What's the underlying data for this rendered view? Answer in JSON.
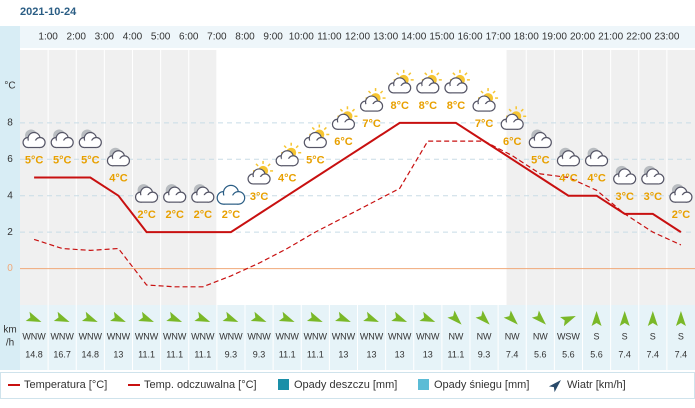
{
  "chart_data": {
    "type": "line",
    "title": "2021-10-24",
    "ylabel": "°C",
    "xlim": [
      0,
      24
    ],
    "xticks": [
      {
        "value": 1,
        "label": "1:00"
      },
      {
        "value": 2,
        "label": "2:00"
      },
      {
        "value": 3,
        "label": "3:00"
      },
      {
        "value": 4,
        "label": "4:00"
      },
      {
        "value": 5,
        "label": "5:00"
      },
      {
        "value": 6,
        "label": "6:00"
      },
      {
        "value": 7,
        "label": "7:00"
      },
      {
        "value": 8,
        "label": "8:00"
      },
      {
        "value": 9,
        "label": "9:00"
      },
      {
        "value": 10,
        "label": "10:00"
      },
      {
        "value": 11,
        "label": "11:00"
      },
      {
        "value": 12,
        "label": "12:00"
      },
      {
        "value": 13,
        "label": "13:00"
      },
      {
        "value": 14,
        "label": "14:00"
      },
      {
        "value": 15,
        "label": "15:00"
      },
      {
        "value": 16,
        "label": "16:00"
      },
      {
        "value": 17,
        "label": "17:00"
      },
      {
        "value": 18,
        "label": "18:00"
      },
      {
        "value": 19,
        "label": "19:00"
      },
      {
        "value": 20,
        "label": "20:00"
      },
      {
        "value": 21,
        "label": "21:00"
      },
      {
        "value": 22,
        "label": "22:00"
      },
      {
        "value": 23,
        "label": "23:00"
      }
    ],
    "x": [
      0.5,
      1.5,
      2.5,
      3.5,
      4.5,
      5.5,
      6.5,
      7.5,
      8.5,
      9.5,
      10.5,
      11.5,
      12.5,
      13.5,
      14.5,
      15.5,
      16.5,
      17.5,
      18.5,
      19.5,
      20.5,
      21.5,
      22.5,
      23.5
    ],
    "ylim": [
      -2,
      12
    ],
    "yticks": [
      0,
      2,
      4,
      6,
      8
    ],
    "grid": true,
    "zero_line_color": "#f0a878",
    "series": [
      {
        "name": "Temperatura [°C]",
        "color": "#c81010",
        "dash": false,
        "values": [
          5,
          5,
          5,
          4,
          2,
          2,
          2,
          2,
          3,
          4,
          5,
          6,
          7,
          8,
          8,
          8,
          7,
          6,
          5,
          4,
          4,
          3,
          3,
          2
        ],
        "value_labels": [
          "5°C",
          "5°C",
          "5°C",
          "4°C",
          "2°C",
          "2°C",
          "2°C",
          "2°C",
          "3°C",
          "4°C",
          "5°C",
          "6°C",
          "7°C",
          "8°C",
          "8°C",
          "8°C",
          "7°C",
          "6°C",
          "5°C",
          "4°C",
          "4°C",
          "3°C",
          "3°C",
          "2°C"
        ]
      },
      {
        "name": "Temp. odczuwalna [°C]",
        "color": "#c81010",
        "dash": true,
        "values": [
          1.6,
          1.1,
          1.0,
          1.1,
          -0.9,
          -1.0,
          -1.0,
          -0.4,
          0.3,
          1.1,
          2.0,
          2.8,
          3.6,
          4.4,
          7.0,
          7.0,
          7.0,
          6.2,
          5.2,
          5.0,
          4.3,
          3.0,
          2.0,
          1.3
        ]
      }
    ],
    "legend_items": [
      {
        "name": "Opady deszczu [mm]",
        "color": "#1a8fa8"
      },
      {
        "name": "Opady śniegu [mm]",
        "color": "#5bbcd6"
      },
      {
        "name": "Wiatr [km/h]",
        "color": "#2a4a6a"
      }
    ],
    "wind": {
      "unit_label": [
        "km",
        "/h"
      ],
      "directions": [
        "WNW",
        "WNW",
        "WNW",
        "WNW",
        "WNW",
        "WNW",
        "WNW",
        "WNW",
        "WNW",
        "WNW",
        "WNW",
        "WNW",
        "WNW",
        "WNW",
        "WNW",
        "NW",
        "NW",
        "NW",
        "NW",
        "WSW",
        "S",
        "S",
        "S",
        "S"
      ],
      "speeds": [
        14.8,
        16.7,
        14.8,
        13,
        11.1,
        11.1,
        11.1,
        9.3,
        9.3,
        11.1,
        11.1,
        13,
        13,
        13,
        13,
        11.1,
        9.3,
        7.4,
        5.6,
        5.6,
        5.6,
        7.4,
        7.4,
        7.4
      ],
      "color": "#7ab828"
    }
  }
}
